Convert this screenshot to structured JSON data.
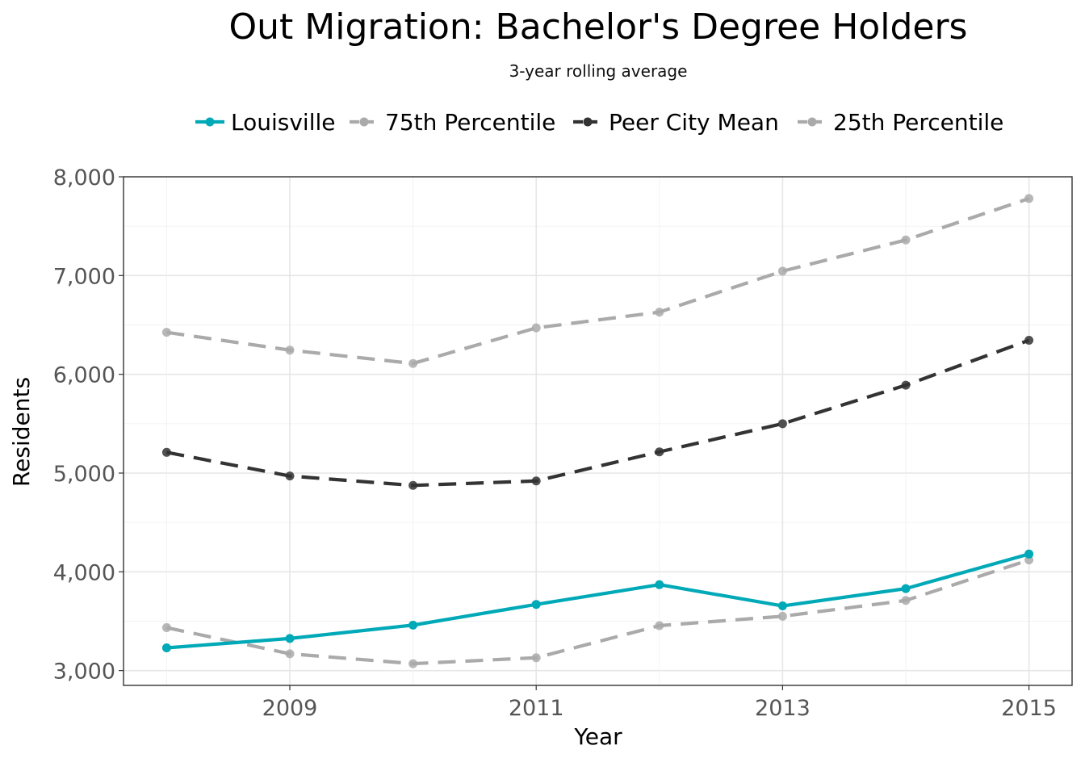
{
  "chart_data": {
    "type": "line",
    "title": "Out Migration: Bachelor's Degree Holders",
    "subtitle": "3-year rolling average",
    "xlabel": "Year",
    "ylabel": "Residents",
    "x": [
      2008,
      2009,
      2010,
      2011,
      2012,
      2013,
      2014,
      2015
    ],
    "xlim": [
      2007.65,
      2015.35
    ],
    "ylim": [
      2850,
      8000
    ],
    "xticks": [
      2009,
      2011,
      2013,
      2015
    ],
    "xtick_labels": [
      "2009",
      "2011",
      "2013",
      "2015"
    ],
    "yticks": [
      3000,
      4000,
      5000,
      6000,
      7000,
      8000
    ],
    "ytick_labels": [
      "3,000",
      "4,000",
      "5,000",
      "6,000",
      "7,000",
      "8,000"
    ],
    "grid": true,
    "legend_position": "top",
    "series": [
      {
        "name": "Louisville",
        "values": [
          3230,
          3325,
          3460,
          3670,
          3870,
          3655,
          3830,
          4180
        ],
        "color": "#00a9b7",
        "dashed": false
      },
      {
        "name": "75th Percentile",
        "values": [
          6425,
          6245,
          6110,
          6470,
          6630,
          7045,
          7360,
          7780
        ],
        "color": "#aaaaaa",
        "dashed": true
      },
      {
        "name": "Peer City Mean",
        "values": [
          5210,
          4970,
          4875,
          4920,
          5215,
          5500,
          5890,
          6345
        ],
        "color": "#333333",
        "dashed": true
      },
      {
        "name": "25th Percentile",
        "values": [
          3435,
          3170,
          3070,
          3130,
          3455,
          3550,
          3710,
          4120
        ],
        "color": "#aaaaaa",
        "dashed": true
      }
    ]
  }
}
